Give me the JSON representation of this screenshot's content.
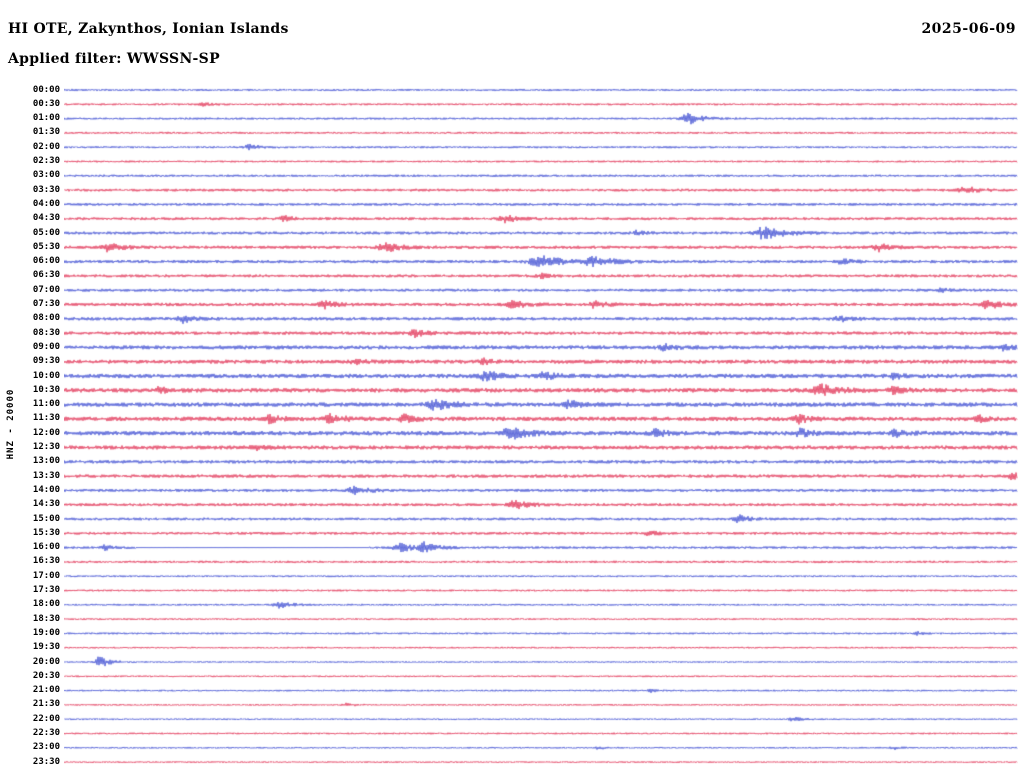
{
  "header": {
    "station_line": "HI OTE, Zakynthos, Ionian Islands",
    "date": "2025-06-09",
    "filter_line": "Applied filter: WWSSN-SP"
  },
  "axis": {
    "left_label": "HNZ - 20000"
  },
  "colors": {
    "blue": "#2233cc",
    "red": "#dc143c",
    "text": "#000000",
    "background": "#ffffff"
  },
  "chart_data": {
    "type": "line",
    "title": "HI OTE, Zakynthos, Ionian Islands",
    "date": "2025-06-09",
    "filter": "WWSSN-SP",
    "channel_scale": "HNZ - 20000",
    "row_interval_minutes": 30,
    "trace_colors_cycle": [
      "blue",
      "red"
    ],
    "rows": [
      {
        "time": "00:00",
        "color": "blue",
        "amp": 1.1,
        "events": []
      },
      {
        "time": "00:30",
        "color": "red",
        "amp": 1.1,
        "events": [
          {
            "x": 0.145,
            "amp": 1.5,
            "w": 0.004
          }
        ]
      },
      {
        "time": "01:00",
        "color": "blue",
        "amp": 1.1,
        "events": [
          {
            "x": 0.655,
            "amp": 5.5,
            "w": 0.007
          }
        ]
      },
      {
        "time": "01:30",
        "color": "red",
        "amp": 1.1,
        "events": []
      },
      {
        "time": "02:00",
        "color": "blue",
        "amp": 1.1,
        "events": [
          {
            "x": 0.195,
            "amp": 2.5,
            "w": 0.005
          }
        ]
      },
      {
        "time": "02:30",
        "color": "red",
        "amp": 1.0,
        "events": []
      },
      {
        "time": "03:00",
        "color": "blue",
        "amp": 1.2,
        "events": []
      },
      {
        "time": "03:30",
        "color": "red",
        "amp": 1.4,
        "events": [
          {
            "x": 0.945,
            "amp": 3.5,
            "w": 0.006
          }
        ]
      },
      {
        "time": "04:00",
        "color": "blue",
        "amp": 1.4,
        "events": []
      },
      {
        "time": "04:30",
        "color": "red",
        "amp": 1.5,
        "events": [
          {
            "x": 0.232,
            "amp": 2.5,
            "w": 0.005
          },
          {
            "x": 0.463,
            "amp": 3.5,
            "w": 0.006
          }
        ]
      },
      {
        "time": "05:00",
        "color": "blue",
        "amp": 1.5,
        "events": [
          {
            "x": 0.6,
            "amp": 2.0,
            "w": 0.004
          },
          {
            "x": 0.735,
            "amp": 6.5,
            "w": 0.009
          }
        ]
      },
      {
        "time": "05:30",
        "color": "red",
        "amp": 1.6,
        "events": [
          {
            "x": 0.048,
            "amp": 4.5,
            "w": 0.006
          },
          {
            "x": 0.337,
            "amp": 4.5,
            "w": 0.007
          },
          {
            "x": 0.855,
            "amp": 3.5,
            "w": 0.006
          }
        ]
      },
      {
        "time": "06:00",
        "color": "blue",
        "amp": 1.6,
        "events": [
          {
            "x": 0.5,
            "amp": 5.5,
            "w": 0.011
          },
          {
            "x": 0.555,
            "amp": 4.5,
            "w": 0.009
          },
          {
            "x": 0.815,
            "amp": 2.5,
            "w": 0.005
          }
        ]
      },
      {
        "time": "06:30",
        "color": "red",
        "amp": 1.5,
        "events": [
          {
            "x": 0.5,
            "amp": 2.5,
            "w": 0.005
          }
        ]
      },
      {
        "time": "07:00",
        "color": "blue",
        "amp": 1.5,
        "events": [
          {
            "x": 0.92,
            "amp": 1.5,
            "w": 0.004
          }
        ]
      },
      {
        "time": "07:30",
        "color": "red",
        "amp": 1.7,
        "events": [
          {
            "x": 0.273,
            "amp": 3.5,
            "w": 0.006
          },
          {
            "x": 0.468,
            "amp": 4.5,
            "w": 0.006
          },
          {
            "x": 0.557,
            "amp": 3.5,
            "w": 0.005
          },
          {
            "x": 0.969,
            "amp": 4.5,
            "w": 0.006
          }
        ]
      },
      {
        "time": "08:00",
        "color": "blue",
        "amp": 1.7,
        "events": [
          {
            "x": 0.125,
            "amp": 3.5,
            "w": 0.005
          },
          {
            "x": 0.813,
            "amp": 2.5,
            "w": 0.005
          }
        ]
      },
      {
        "time": "08:30",
        "color": "red",
        "amp": 1.7,
        "events": [
          {
            "x": 0.368,
            "amp": 3.5,
            "w": 0.005
          }
        ]
      },
      {
        "time": "09:00",
        "color": "blue",
        "amp": 2.0,
        "events": [
          {
            "x": 0.63,
            "amp": 2.5,
            "w": 0.005
          },
          {
            "x": 0.985,
            "amp": 2.5,
            "w": 0.004
          }
        ]
      },
      {
        "time": "09:30",
        "color": "red",
        "amp": 2.0,
        "events": [
          {
            "x": 0.305,
            "amp": 2.5,
            "w": 0.004
          },
          {
            "x": 0.44,
            "amp": 2.5,
            "w": 0.004
          }
        ]
      },
      {
        "time": "10:00",
        "color": "blue",
        "amp": 2.2,
        "events": [
          {
            "x": 0.443,
            "amp": 4.5,
            "w": 0.006
          },
          {
            "x": 0.504,
            "amp": 3.5,
            "w": 0.005
          },
          {
            "x": 0.87,
            "amp": 2.5,
            "w": 0.004
          }
        ]
      },
      {
        "time": "10:30",
        "color": "red",
        "amp": 2.2,
        "events": [
          {
            "x": 0.1,
            "amp": 2.5,
            "w": 0.004
          },
          {
            "x": 0.795,
            "amp": 5.5,
            "w": 0.008
          },
          {
            "x": 0.871,
            "amp": 3.5,
            "w": 0.005
          }
        ]
      },
      {
        "time": "11:00",
        "color": "blue",
        "amp": 2.2,
        "events": [
          {
            "x": 0.389,
            "amp": 5.5,
            "w": 0.007
          },
          {
            "x": 0.53,
            "amp": 3.5,
            "w": 0.005
          }
        ]
      },
      {
        "time": "11:30",
        "color": "red",
        "amp": 2.2,
        "events": [
          {
            "x": 0.216,
            "amp": 3.5,
            "w": 0.005
          },
          {
            "x": 0.279,
            "amp": 4.5,
            "w": 0.006
          },
          {
            "x": 0.357,
            "amp": 3.5,
            "w": 0.005
          },
          {
            "x": 0.771,
            "amp": 3.5,
            "w": 0.005
          },
          {
            "x": 0.96,
            "amp": 2.5,
            "w": 0.004
          }
        ]
      },
      {
        "time": "12:00",
        "color": "blue",
        "amp": 2.2,
        "events": [
          {
            "x": 0.468,
            "amp": 5.5,
            "w": 0.008
          },
          {
            "x": 0.62,
            "amp": 3.5,
            "w": 0.005
          },
          {
            "x": 0.772,
            "amp": 3.5,
            "w": 0.005
          },
          {
            "x": 0.871,
            "amp": 3.5,
            "w": 0.005
          }
        ]
      },
      {
        "time": "12:30",
        "color": "red",
        "amp": 2.0,
        "events": [
          {
            "x": 0.2,
            "amp": 2.5,
            "w": 0.004
          }
        ]
      },
      {
        "time": "13:00",
        "color": "blue",
        "amp": 1.7,
        "events": []
      },
      {
        "time": "13:30",
        "color": "red",
        "amp": 1.7,
        "events": [
          {
            "x": 0.995,
            "amp": 3.5,
            "w": 0.004
          }
        ]
      },
      {
        "time": "14:00",
        "color": "blue",
        "amp": 1.5,
        "events": [
          {
            "x": 0.305,
            "amp": 4.5,
            "w": 0.006
          }
        ]
      },
      {
        "time": "14:30",
        "color": "red",
        "amp": 1.5,
        "events": [
          {
            "x": 0.473,
            "amp": 4.5,
            "w": 0.006
          }
        ]
      },
      {
        "time": "15:00",
        "color": "blue",
        "amp": 1.4,
        "events": [
          {
            "x": 0.708,
            "amp": 3.5,
            "w": 0.005
          }
        ]
      },
      {
        "time": "15:30",
        "color": "red",
        "amp": 1.4,
        "events": [
          {
            "x": 0.614,
            "amp": 2.5,
            "w": 0.004
          }
        ]
      },
      {
        "time": "16:00",
        "color": "blue",
        "amp": 1.3,
        "events": [
          {
            "x": 0.043,
            "amp": 2.5,
            "w": 0.004
          },
          {
            "x": 0.352,
            "amp": 4.5,
            "w": 0.006
          },
          {
            "x": 0.378,
            "amp": 4.5,
            "w": 0.006
          }
        ],
        "gaps": [
          {
            "start": 0.075,
            "end": 0.32
          }
        ]
      },
      {
        "time": "16:30",
        "color": "red",
        "amp": 1.2,
        "events": []
      },
      {
        "time": "17:00",
        "color": "blue",
        "amp": 1.0,
        "events": []
      },
      {
        "time": "17:30",
        "color": "red",
        "amp": 1.0,
        "events": []
      },
      {
        "time": "18:00",
        "color": "blue",
        "amp": 1.0,
        "events": [
          {
            "x": 0.226,
            "amp": 4.5,
            "w": 0.005
          }
        ]
      },
      {
        "time": "18:30",
        "color": "red",
        "amp": 1.0,
        "events": []
      },
      {
        "time": "19:00",
        "color": "blue",
        "amp": 1.0,
        "events": [
          {
            "x": 0.895,
            "amp": 1.5,
            "w": 0.003
          }
        ]
      },
      {
        "time": "19:30",
        "color": "red",
        "amp": 0.9,
        "events": []
      },
      {
        "time": "20:00",
        "color": "blue",
        "amp": 0.9,
        "events": [
          {
            "x": 0.038,
            "amp": 5.5,
            "w": 0.005
          }
        ]
      },
      {
        "time": "20:30",
        "color": "red",
        "amp": 0.9,
        "events": []
      },
      {
        "time": "21:00",
        "color": "blue",
        "amp": 0.9,
        "events": [
          {
            "x": 0.615,
            "amp": 1.5,
            "w": 0.003
          }
        ]
      },
      {
        "time": "21:30",
        "color": "red",
        "amp": 0.9,
        "events": [
          {
            "x": 0.295,
            "amp": 1.5,
            "w": 0.004
          }
        ]
      },
      {
        "time": "22:00",
        "color": "blue",
        "amp": 0.9,
        "events": [
          {
            "x": 0.763,
            "amp": 2.5,
            "w": 0.004
          }
        ]
      },
      {
        "time": "22:30",
        "color": "red",
        "amp": 0.9,
        "events": []
      },
      {
        "time": "23:00",
        "color": "blue",
        "amp": 0.9,
        "events": [
          {
            "x": 0.56,
            "amp": 1.5,
            "w": 0.003
          },
          {
            "x": 0.87,
            "amp": 1.5,
            "w": 0.003
          }
        ]
      },
      {
        "time": "23:30",
        "color": "red",
        "amp": 0.9,
        "events": []
      }
    ]
  }
}
